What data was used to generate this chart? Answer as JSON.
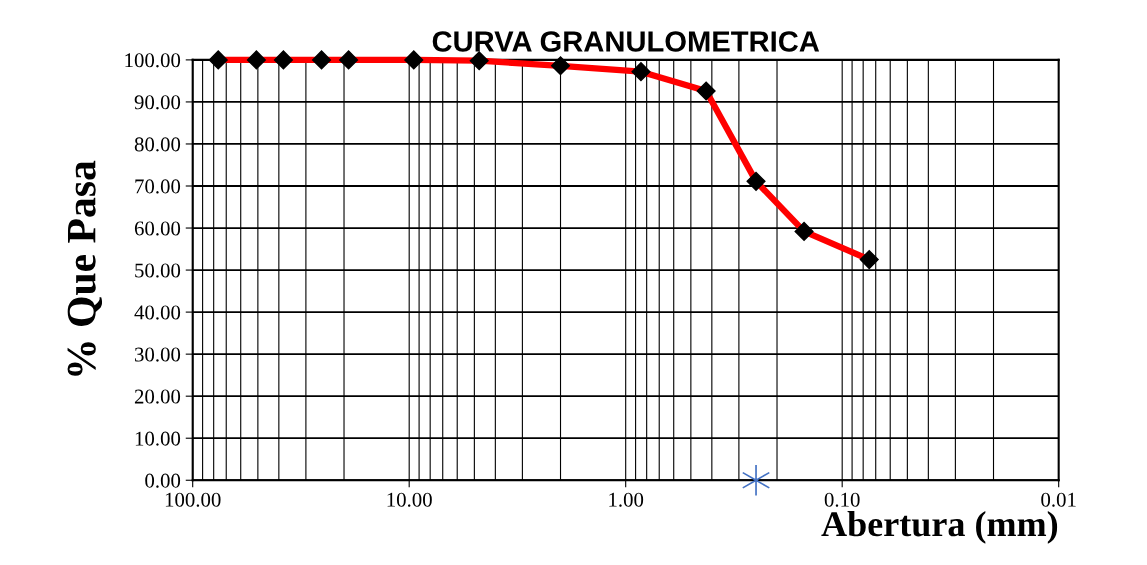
{
  "chart_data": {
    "type": "line",
    "title": "CURVA GRANULOMETRICA",
    "xlabel": "Abertura (mm)",
    "ylabel": "% Que Pasa",
    "log": "x",
    "grid": true,
    "legend": false,
    "marker": "diamond",
    "line_style": "solid",
    "xlim": [
      100,
      0.01
    ],
    "xticks": [
      {
        "value": 100,
        "label": "100.00"
      },
      {
        "value": 10,
        "label": "10.00"
      },
      {
        "value": 1,
        "label": "1.00"
      },
      {
        "value": 0.1,
        "label": "0.10"
      },
      {
        "value": 0.01,
        "label": "0.01"
      }
    ],
    "ylim": [
      0,
      100
    ],
    "yticks": [
      {
        "value": 0,
        "label": "0.00"
      },
      {
        "value": 10,
        "label": "10.00"
      },
      {
        "value": 20,
        "label": "20.00"
      },
      {
        "value": 30,
        "label": "30.00"
      },
      {
        "value": 40,
        "label": "40.00"
      },
      {
        "value": 50,
        "label": "50.00"
      },
      {
        "value": 60,
        "label": "60.00"
      },
      {
        "value": 70,
        "label": "70.00"
      },
      {
        "value": 80,
        "label": "80.00"
      },
      {
        "value": 90,
        "label": "90.00"
      },
      {
        "value": 100,
        "label": "100.00"
      }
    ],
    "series": [
      {
        "color": "#ff0000",
        "x": [
          76.2,
          50.8,
          38.1,
          25.4,
          19.05,
          9.525,
          4.75,
          2.0,
          0.85,
          0.425,
          0.25,
          0.15,
          0.075
        ],
        "values": [
          100,
          100,
          100,
          100,
          100,
          100,
          99.8,
          98.6,
          97.2,
          92.6,
          71.1,
          59.2,
          52.5
        ]
      },
      {
        "type": "scatter",
        "marker": "cross",
        "color": "#4472c4",
        "x": [
          0.25
        ],
        "values": [
          0
        ]
      }
    ]
  }
}
